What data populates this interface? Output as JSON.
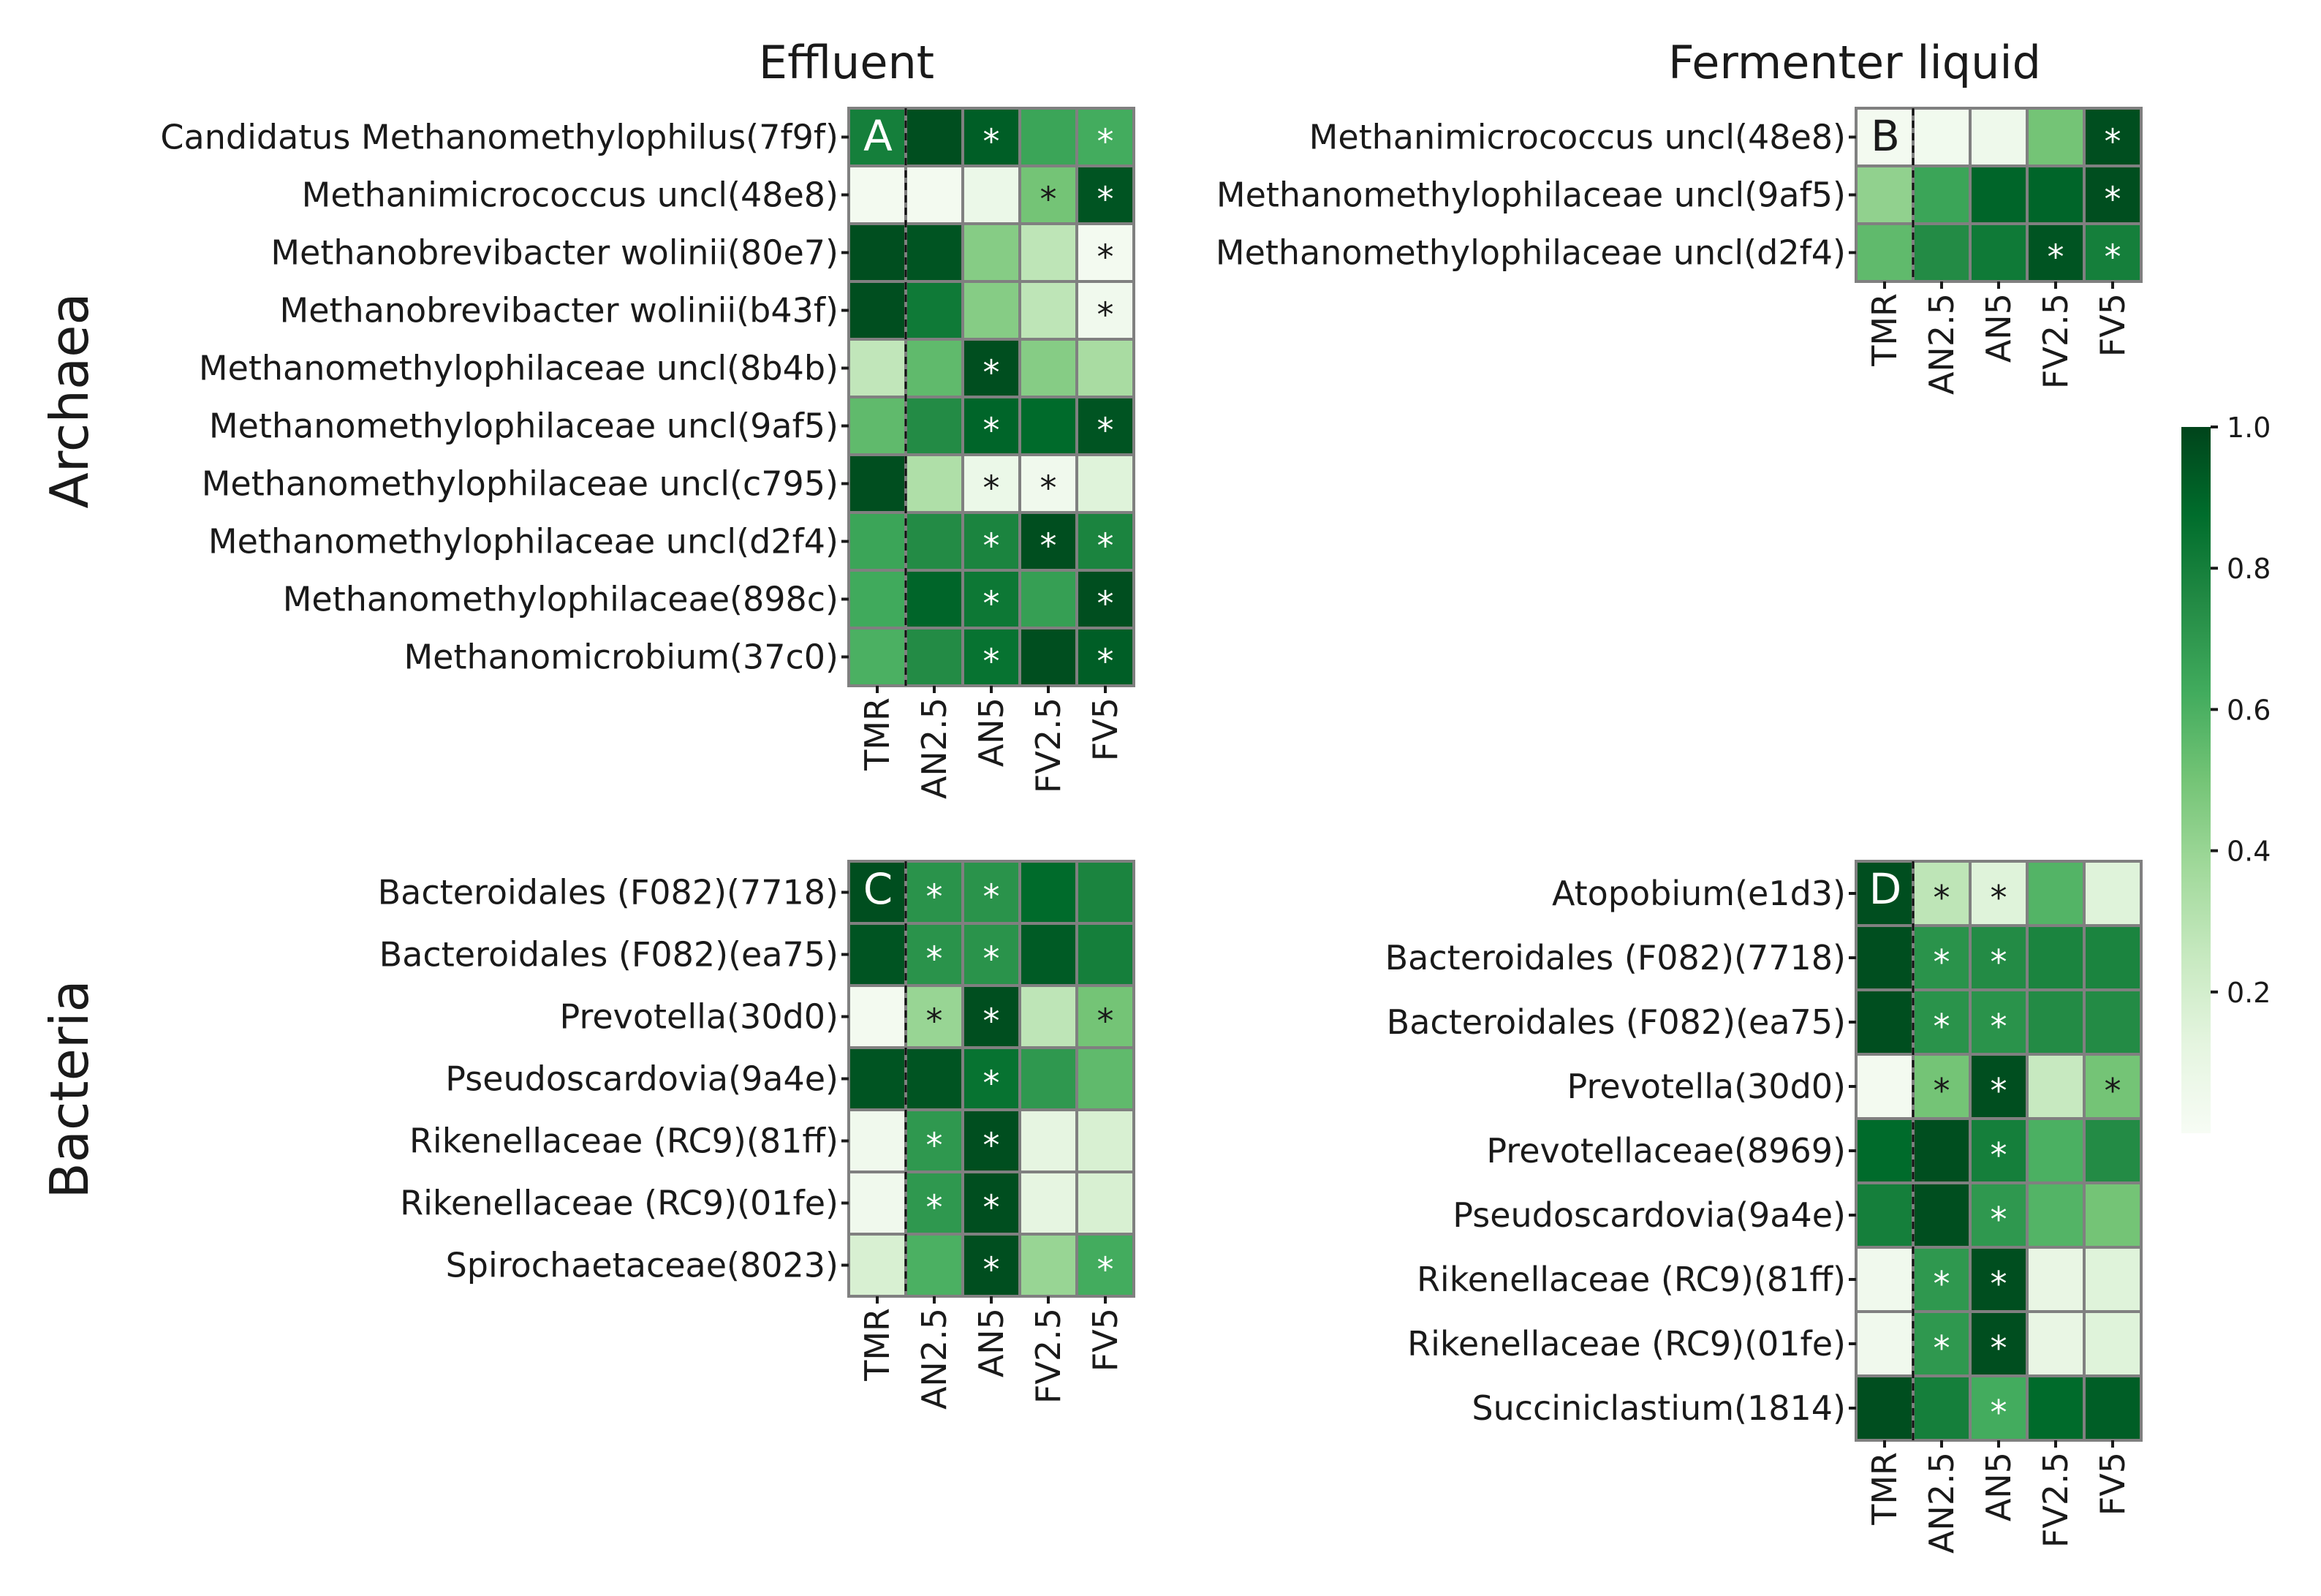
{
  "figure": {
    "col_titles": [
      "Effluent",
      "Fermenter liquid"
    ],
    "row_titles": [
      "Archaea",
      "Bacteria"
    ]
  },
  "colorbar": {
    "min": 0.0,
    "max": 1.0,
    "ticks": [
      "0.2",
      "0.4",
      "0.6",
      "0.8",
      "1.0"
    ],
    "colors": [
      "#f7fcf5",
      "#e5f5e0",
      "#c7e9c0",
      "#a1d99b",
      "#74c476",
      "#41ab5d",
      "#238b45",
      "#006d2c",
      "#00441b"
    ]
  },
  "chart_data": [
    {
      "type": "heatmap",
      "panel": "A",
      "columns": [
        "TMR",
        "AN2.5",
        "AN5",
        "FV2.5",
        "FV5"
      ],
      "rows": [
        "Candidatus Methanomethylophilus(7f9f)",
        "Methanimicrococcus uncl(48e8)",
        "Methanobrevibacter wolinii(80e7)",
        "Methanobrevibacter wolinii(b43f)",
        "Methanomethylophilaceae uncl(8b4b)",
        "Methanomethylophilaceae uncl(9af5)",
        "Methanomethylophilaceae uncl(c795)",
        "Methanomethylophilaceae uncl(d2f4)",
        "Methanomethylophilaceae(898c)",
        "Methanomicrobium(37c0)"
      ],
      "values": [
        [
          0.8,
          0.97,
          0.92,
          0.65,
          0.62
        ],
        [
          0.03,
          0.03,
          0.08,
          0.5,
          0.95
        ],
        [
          0.97,
          0.95,
          0.45,
          0.28,
          0.03
        ],
        [
          0.97,
          0.82,
          0.45,
          0.28,
          0.05
        ],
        [
          0.27,
          0.55,
          0.97,
          0.45,
          0.35
        ],
        [
          0.55,
          0.75,
          0.9,
          0.88,
          0.95
        ],
        [
          0.97,
          0.33,
          0.08,
          0.05,
          0.15
        ],
        [
          0.65,
          0.75,
          0.78,
          0.97,
          0.78
        ],
        [
          0.63,
          0.9,
          0.83,
          0.67,
          0.97
        ],
        [
          0.6,
          0.75,
          0.85,
          0.97,
          0.92
        ]
      ],
      "significant": [
        [
          0,
          0,
          1,
          0,
          1
        ],
        [
          0,
          0,
          0,
          1,
          1
        ],
        [
          0,
          0,
          0,
          0,
          1
        ],
        [
          0,
          0,
          0,
          0,
          1
        ],
        [
          0,
          0,
          1,
          0,
          0
        ],
        [
          0,
          0,
          1,
          0,
          1
        ],
        [
          0,
          0,
          1,
          1,
          0
        ],
        [
          0,
          0,
          1,
          1,
          1
        ],
        [
          0,
          0,
          1,
          0,
          1
        ],
        [
          0,
          0,
          1,
          0,
          1
        ]
      ]
    },
    {
      "type": "heatmap",
      "panel": "B",
      "columns": [
        "TMR",
        "AN2.5",
        "AN5",
        "FV2.5",
        "FV5"
      ],
      "rows": [
        "Methanimicrococcus uncl(48e8)",
        "Methanomethylophilaceae uncl(9af5)",
        "Methanomethylophilaceae uncl(d2f4)"
      ],
      "values": [
        [
          0.03,
          0.04,
          0.06,
          0.5,
          0.97
        ],
        [
          0.42,
          0.65,
          0.9,
          0.9,
          0.97
        ],
        [
          0.55,
          0.75,
          0.82,
          0.95,
          0.8
        ]
      ],
      "significant": [
        [
          0,
          0,
          0,
          0,
          1
        ],
        [
          0,
          0,
          0,
          0,
          1
        ],
        [
          0,
          0,
          0,
          1,
          1
        ]
      ]
    },
    {
      "type": "heatmap",
      "panel": "C",
      "columns": [
        "TMR",
        "AN2.5",
        "AN5",
        "FV2.5",
        "FV5"
      ],
      "rows": [
        "Bacteroidales (F082)(7718)",
        "Bacteroidales (F082)(ea75)",
        "Prevotella(30d0)",
        "Pseudoscardovia(9a4e)",
        "Rikenellaceae (RC9)(81ff)",
        "Rikenellaceae (RC9)(01fe)",
        "Spirochaetaceae(8023)"
      ],
      "values": [
        [
          0.97,
          0.72,
          0.72,
          0.88,
          0.78
        ],
        [
          0.95,
          0.72,
          0.72,
          0.93,
          0.8
        ],
        [
          0.03,
          0.4,
          0.97,
          0.28,
          0.5
        ],
        [
          0.95,
          0.95,
          0.85,
          0.7,
          0.55
        ],
        [
          0.05,
          0.7,
          0.97,
          0.12,
          0.18
        ],
        [
          0.05,
          0.7,
          0.97,
          0.12,
          0.18
        ],
        [
          0.18,
          0.6,
          0.97,
          0.4,
          0.62
        ]
      ],
      "significant": [
        [
          0,
          1,
          1,
          0,
          0
        ],
        [
          0,
          1,
          1,
          0,
          0
        ],
        [
          0,
          1,
          1,
          0,
          1
        ],
        [
          0,
          0,
          1,
          0,
          0
        ],
        [
          0,
          1,
          1,
          0,
          0
        ],
        [
          0,
          1,
          1,
          0,
          0
        ],
        [
          0,
          0,
          1,
          0,
          1
        ]
      ]
    },
    {
      "type": "heatmap",
      "panel": "D",
      "columns": [
        "TMR",
        "AN2.5",
        "AN5",
        "FV2.5",
        "FV5"
      ],
      "rows": [
        "Atopobium(e1d3)",
        "Bacteroidales (F082)(7718)",
        "Bacteroidales (F082)(ea75)",
        "Prevotella(30d0)",
        "Prevotellaceae(8969)",
        "Pseudoscardovia(9a4e)",
        "Rikenellaceae (RC9)(81ff)",
        "Rikenellaceae (RC9)(01fe)",
        "Succiniclastium(1814)"
      ],
      "values": [
        [
          0.97,
          0.28,
          0.15,
          0.58,
          0.15
        ],
        [
          0.97,
          0.72,
          0.75,
          0.78,
          0.78
        ],
        [
          0.97,
          0.72,
          0.72,
          0.75,
          0.75
        ],
        [
          0.03,
          0.5,
          0.97,
          0.25,
          0.5
        ],
        [
          0.88,
          0.97,
          0.8,
          0.6,
          0.75
        ],
        [
          0.8,
          0.97,
          0.7,
          0.58,
          0.5
        ],
        [
          0.05,
          0.7,
          0.97,
          0.1,
          0.15
        ],
        [
          0.05,
          0.7,
          0.97,
          0.1,
          0.15
        ],
        [
          0.97,
          0.8,
          0.62,
          0.88,
          0.92
        ]
      ],
      "significant": [
        [
          0,
          1,
          1,
          0,
          0
        ],
        [
          0,
          1,
          1,
          0,
          0
        ],
        [
          0,
          1,
          1,
          0,
          0
        ],
        [
          0,
          1,
          1,
          0,
          1
        ],
        [
          0,
          0,
          1,
          0,
          0
        ],
        [
          0,
          0,
          1,
          0,
          0
        ],
        [
          0,
          1,
          1,
          0,
          0
        ],
        [
          0,
          1,
          1,
          0,
          0
        ],
        [
          0,
          0,
          1,
          0,
          0
        ]
      ]
    }
  ]
}
